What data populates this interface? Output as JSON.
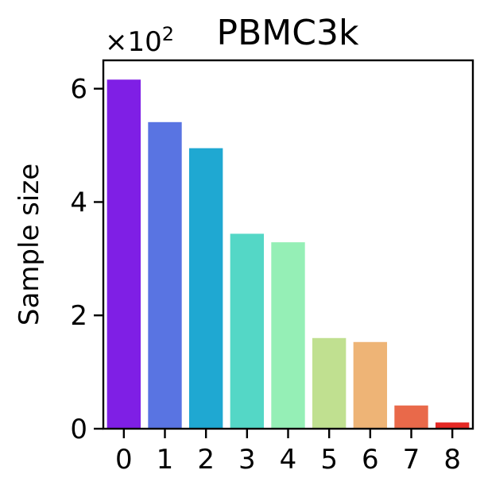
{
  "chart_data": {
    "type": "bar",
    "title": "PBMC3k",
    "xlabel": "",
    "ylabel": "Sample size",
    "scale_label": "×10²",
    "scale_base": "×10",
    "scale_exp": "2",
    "categories": [
      "0",
      "1",
      "2",
      "3",
      "4",
      "5",
      "6",
      "7",
      "8"
    ],
    "values": [
      616,
      541,
      495,
      344,
      329,
      160,
      153,
      41,
      11
    ],
    "colors": [
      "#7f1fe5",
      "#5974e2",
      "#1fa8d2",
      "#54d7c6",
      "#95efb6",
      "#c0e090",
      "#eeb476",
      "#e9694a",
      "#e52925"
    ],
    "ylim": [
      0,
      650
    ],
    "yticks": [
      0,
      200,
      400,
      600
    ],
    "ytick_labels": [
      "0",
      "2",
      "4",
      "6"
    ],
    "grid": false,
    "legend": "none"
  }
}
